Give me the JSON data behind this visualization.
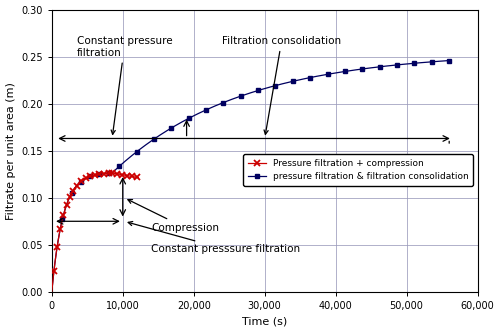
{
  "title": "",
  "xlabel": "Time (s)",
  "ylabel": "Filtrate per unit area (m)",
  "xlim": [
    0,
    60000
  ],
  "ylim": [
    0.0,
    0.3
  ],
  "xticks": [
    0,
    10000,
    20000,
    30000,
    40000,
    50000,
    60000
  ],
  "xtick_labels": [
    "0",
    "10,000",
    "20,000",
    "30,000",
    "40,000",
    "50,000",
    "60,000"
  ],
  "yticks": [
    0.0,
    0.05,
    0.1,
    0.15,
    0.2,
    0.25,
    0.3
  ],
  "background_color": "#ffffff",
  "grid_color": "#9999bb",
  "line1_color": "#cc0000",
  "line2_color": "#000060",
  "legend1": "Pressure filtration + compression",
  "legend2": "pressure filtration & filtration consolidation",
  "annotation_fontsize": 7.5,
  "tick_fontsize": 7,
  "axis_label_fontsize": 8
}
